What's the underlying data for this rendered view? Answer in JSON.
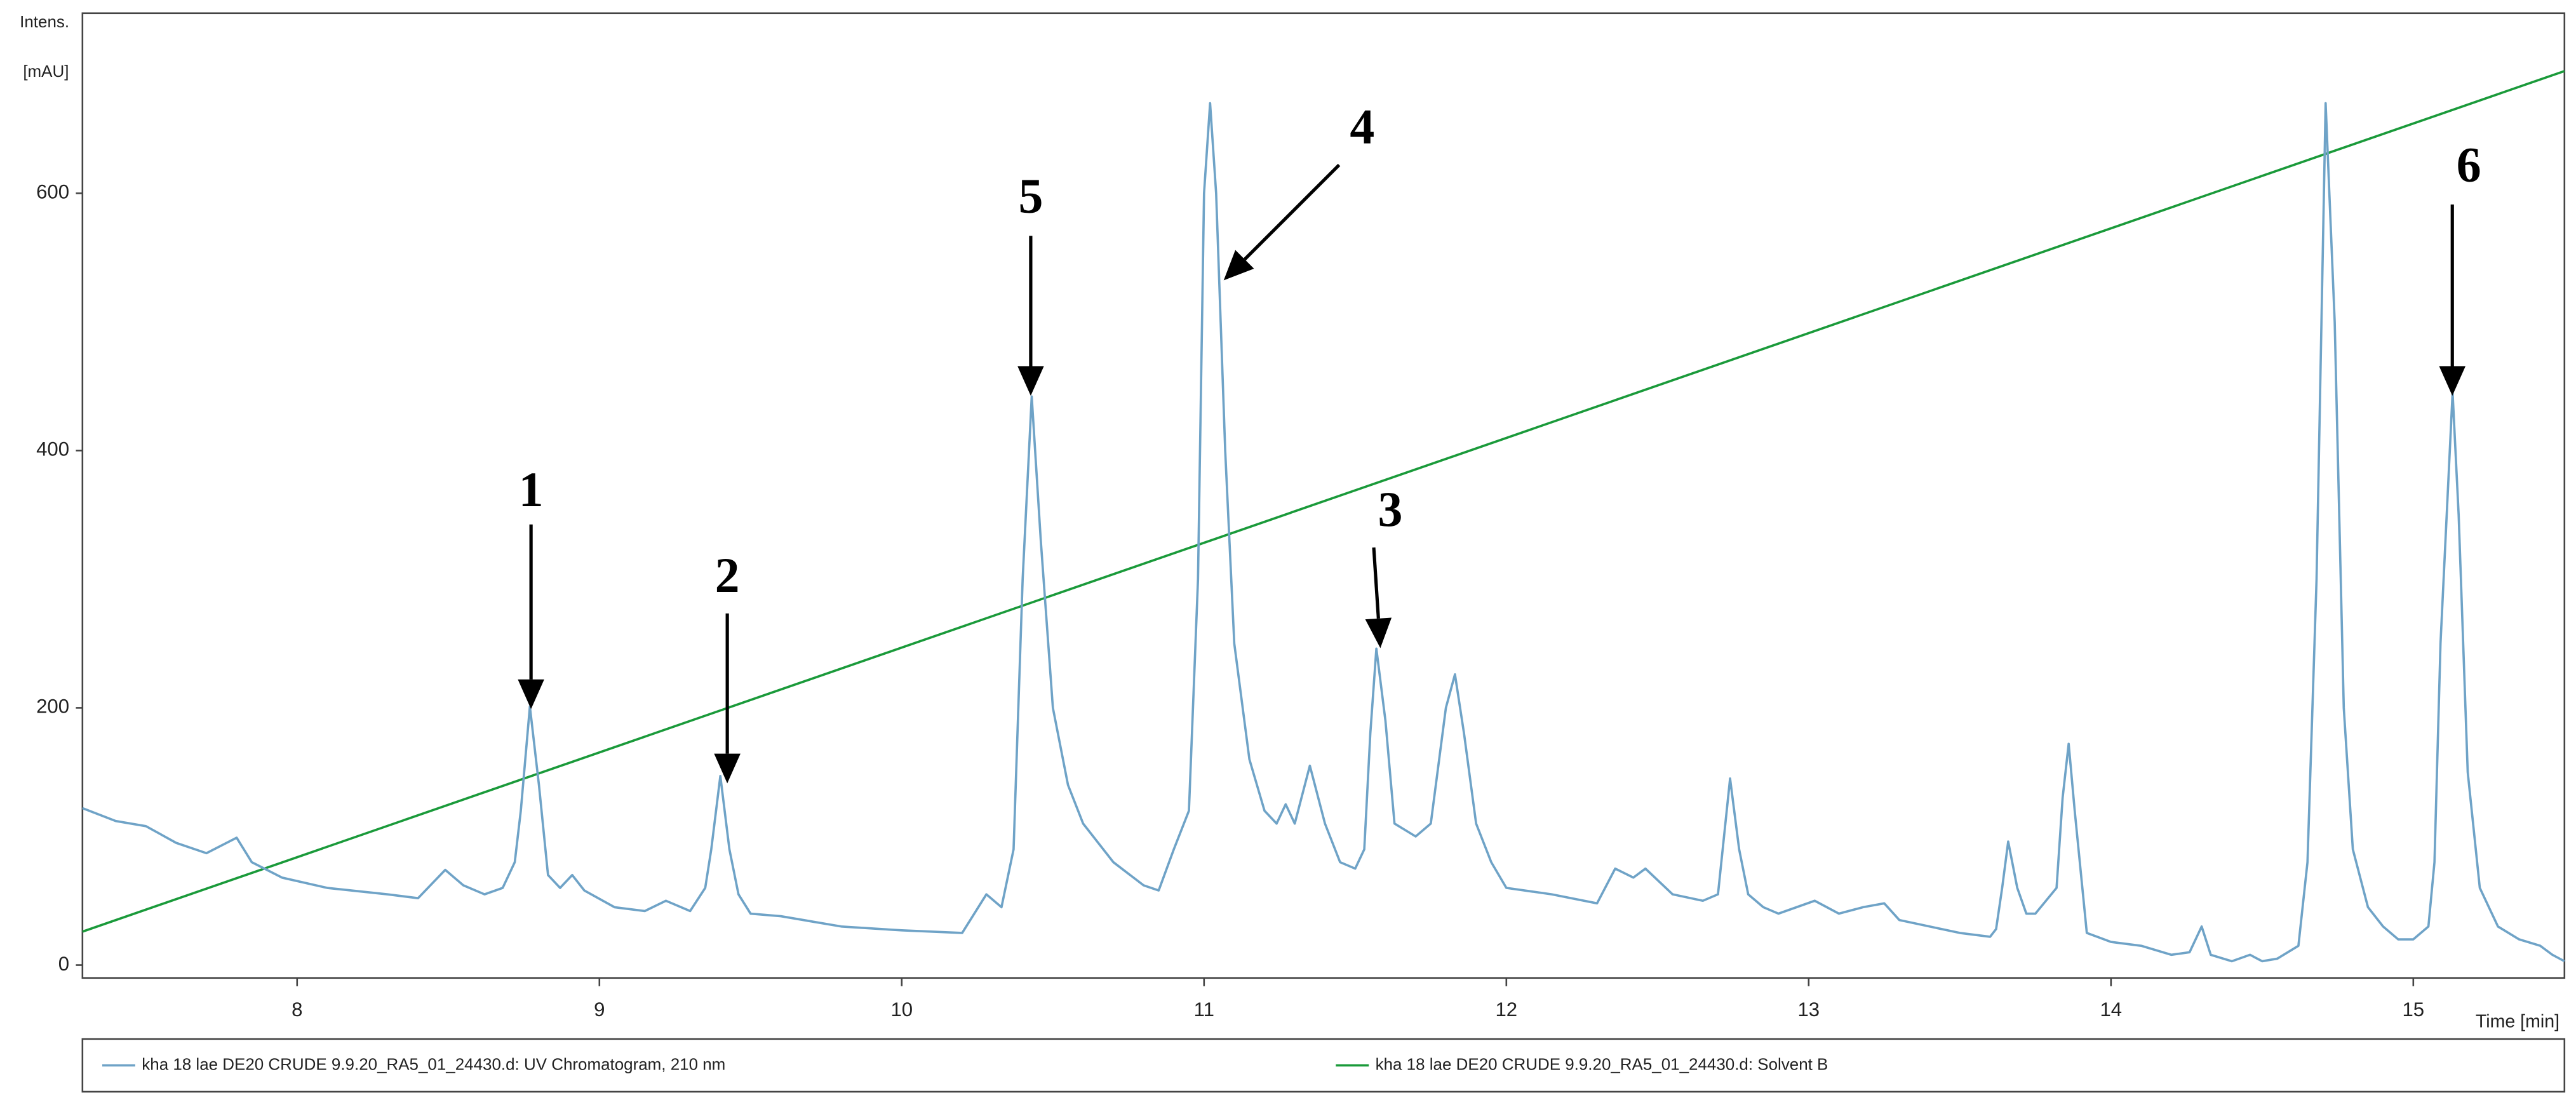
{
  "chart_data": {
    "type": "line",
    "y_label_line1": "Intens.",
    "y_label_line2": "[mAU]",
    "x_label": "Time [min]",
    "xlim": [
      7.29,
      15.5
    ],
    "ylim": [
      -10,
      740
    ],
    "xticks": [
      8,
      9,
      10,
      11,
      12,
      13,
      14,
      15
    ],
    "yticks": [
      0,
      200,
      400,
      600
    ],
    "annotations": [
      "1",
      "2",
      "5",
      "4",
      "3",
      "6"
    ],
    "series": [
      {
        "name": "kha 18 lae DE20 CRUDE 9.9.20_RA5_01_24430.d: UV Chromatogram, 210 nm",
        "color": "#6fa3c7",
        "x": [
          7.29,
          7.4,
          7.5,
          7.6,
          7.7,
          7.8,
          7.85,
          7.95,
          8.1,
          8.3,
          8.4,
          8.49,
          8.55,
          8.62,
          8.68,
          8.72,
          8.74,
          8.77,
          8.8,
          8.83,
          8.87,
          8.91,
          8.95,
          9.05,
          9.15,
          9.22,
          9.3,
          9.35,
          9.37,
          9.4,
          9.43,
          9.46,
          9.5,
          9.6,
          9.8,
          10.0,
          10.2,
          10.28,
          10.33,
          10.37,
          10.4,
          10.43,
          10.46,
          10.5,
          10.55,
          10.6,
          10.7,
          10.8,
          10.85,
          10.9,
          10.95,
          10.98,
          11.0,
          11.02,
          11.04,
          11.07,
          11.1,
          11.15,
          11.2,
          11.24,
          11.27,
          11.3,
          11.35,
          11.4,
          11.45,
          11.5,
          11.53,
          11.55,
          11.57,
          11.6,
          11.63,
          11.7,
          11.75,
          11.8,
          11.83,
          11.86,
          11.9,
          11.95,
          12.0,
          12.15,
          12.3,
          12.36,
          12.42,
          12.46,
          12.55,
          12.65,
          12.7,
          12.72,
          12.74,
          12.77,
          12.8,
          12.85,
          12.9,
          13.02,
          13.1,
          13.18,
          13.25,
          13.3,
          13.4,
          13.5,
          13.6,
          13.62,
          13.64,
          13.66,
          13.69,
          13.72,
          13.75,
          13.82,
          13.84,
          13.86,
          13.88,
          13.92,
          14.0,
          14.1,
          14.2,
          14.26,
          14.3,
          14.33,
          14.4,
          14.46,
          14.5,
          14.55,
          14.62,
          14.65,
          14.68,
          14.71,
          14.74,
          14.77,
          14.8,
          14.85,
          14.9,
          14.95,
          15.0,
          15.05,
          15.07,
          15.09,
          15.13,
          15.15,
          15.18,
          15.22,
          15.28,
          15.35,
          15.42,
          15.46,
          15.5
        ],
        "values": [
          122,
          112,
          108,
          95,
          87,
          99,
          80,
          68,
          60,
          55,
          52,
          74,
          62,
          55,
          60,
          80,
          120,
          201,
          140,
          70,
          60,
          70,
          58,
          45,
          42,
          50,
          42,
          60,
          90,
          147,
          90,
          55,
          40,
          38,
          30,
          27,
          25,
          55,
          45,
          90,
          300,
          442,
          330,
          200,
          140,
          110,
          80,
          62,
          58,
          90,
          120,
          300,
          600,
          670,
          600,
          400,
          250,
          160,
          120,
          110,
          125,
          110,
          155,
          110,
          80,
          75,
          90,
          180,
          246,
          190,
          110,
          100,
          110,
          200,
          226,
          180,
          110,
          80,
          60,
          55,
          48,
          75,
          68,
          75,
          55,
          50,
          55,
          100,
          145,
          90,
          55,
          45,
          40,
          50,
          40,
          45,
          48,
          35,
          30,
          25,
          22,
          28,
          60,
          96,
          60,
          40,
          40,
          60,
          130,
          172,
          120,
          25,
          18,
          15,
          8,
          10,
          30,
          8,
          3,
          8,
          3,
          5,
          15,
          80,
          300,
          670,
          500,
          200,
          90,
          45,
          30,
          20,
          20,
          30,
          80,
          250,
          445,
          350,
          150,
          60,
          30,
          20,
          15,
          8,
          3
        ]
      },
      {
        "name": "kha 18 lae DE20 CRUDE 9.9.20_RA5_01_24430.d: Solvent B",
        "color": "#1a9a3a",
        "x": [
          7.29,
          15.5
        ],
        "values": [
          26,
          695
        ]
      }
    ]
  }
}
